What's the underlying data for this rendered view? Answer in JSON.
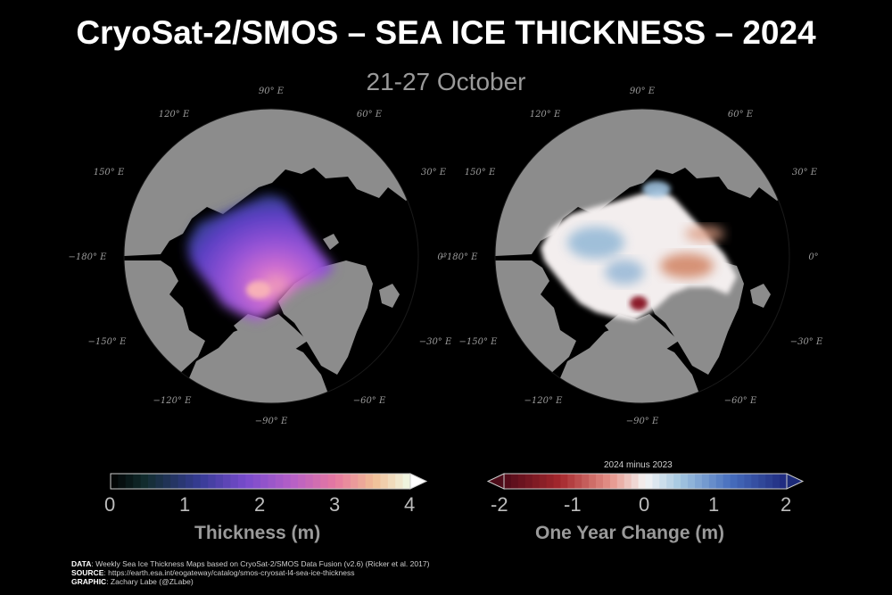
{
  "header": {
    "title": "CryoSat-2/SMOS – SEA ICE THICKNESS – 2024",
    "subtitle": "21-27 October"
  },
  "maps": {
    "lon_labels": [
      "90° E",
      "120° E",
      "60° E",
      "150° E",
      "30° E",
      "−180° E",
      "0°",
      "−150° E",
      "−30° E",
      "−120° E",
      "−60° E",
      "−90° E"
    ]
  },
  "colorbar_thickness": {
    "ticks": [
      "0",
      "1",
      "2",
      "3",
      "4"
    ],
    "label": "Thickness (m)",
    "range": [
      0,
      4
    ]
  },
  "colorbar_change": {
    "note": "2024 minus 2023",
    "ticks": [
      "-2",
      "-1",
      "0",
      "1",
      "2"
    ],
    "label": "One Year Change (m)",
    "range": [
      -2,
      2
    ]
  },
  "credits": {
    "data_label": "DATA",
    "data_text": ": Weekly Sea Ice Thickness Maps based on CryoSat-2/SMOS Data Fusion (v2.6) (Ricker et al. 2017)",
    "source_label": "SOURCE",
    "source_text": ": https://earth.esa.int/eogateway/catalog/smos-cryosat-l4-sea-ice-thickness",
    "graphic_label": "GRAPHIC",
    "graphic_text": ": Zachary Labe (@ZLabe)"
  },
  "colors": {
    "background": "#000000",
    "land": "#8c8c8c",
    "ocean": "#000000"
  }
}
